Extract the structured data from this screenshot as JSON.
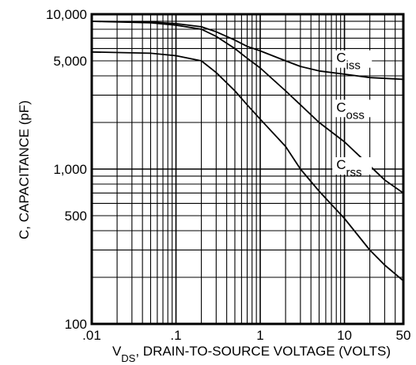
{
  "chart_data": {
    "type": "line",
    "title": "",
    "xlabel": {
      "main": "V",
      "sub": "DS",
      "rest": ", DRAIN-TO-SOURCE VOLTAGE (VOLTS)"
    },
    "ylabel": "C, CAPACITANCE (pF)",
    "x_scale": "log",
    "y_scale": "log",
    "xlim": [
      0.01,
      50
    ],
    "ylim": [
      100,
      10000
    ],
    "grid": true,
    "x_ticks": [
      {
        "value": 0.01,
        "label": ".01"
      },
      {
        "value": 0.1,
        "label": ".1"
      },
      {
        "value": 1,
        "label": "1"
      },
      {
        "value": 10,
        "label": "10"
      },
      {
        "value": 50,
        "label": "50"
      }
    ],
    "y_ticks": [
      {
        "value": 100,
        "label": "100"
      },
      {
        "value": 500,
        "label": "500"
      },
      {
        "value": 1000,
        "label": "1,000"
      },
      {
        "value": 5000,
        "label": "5,000"
      },
      {
        "value": 10000,
        "label": "10,000"
      }
    ],
    "series": [
      {
        "name": "Ciss",
        "label_main": "C",
        "label_sub": "iss",
        "label_at": {
          "x": 8,
          "y": 4900
        },
        "x": [
          0.01,
          0.05,
          0.1,
          0.2,
          0.3,
          0.5,
          0.7,
          1,
          2,
          3,
          5,
          10,
          20,
          30,
          50
        ],
        "y": [
          9000,
          8900,
          8700,
          8300,
          7700,
          6800,
          6200,
          5800,
          5000,
          4600,
          4300,
          4100,
          3900,
          3850,
          3800
        ]
      },
      {
        "name": "Coss",
        "label_main": "C",
        "label_sub": "oss",
        "label_at": {
          "x": 8,
          "y": 2350
        },
        "x": [
          0.01,
          0.05,
          0.1,
          0.2,
          0.3,
          0.5,
          0.7,
          1,
          2,
          3,
          5,
          10,
          20,
          30,
          50
        ],
        "y": [
          9000,
          8800,
          8500,
          8000,
          7200,
          6000,
          5200,
          4500,
          3200,
          2600,
          2000,
          1500,
          1050,
          850,
          700
        ]
      },
      {
        "name": "Crss",
        "label_main": "C",
        "label_sub": "rss",
        "label_at": {
          "x": 8,
          "y": 1000
        },
        "x": [
          0.01,
          0.05,
          0.1,
          0.2,
          0.3,
          0.5,
          0.7,
          1,
          2,
          3,
          5,
          10,
          20,
          30,
          50
        ],
        "y": [
          5700,
          5600,
          5400,
          5000,
          4200,
          3200,
          2600,
          2100,
          1400,
          1000,
          720,
          480,
          300,
          240,
          190
        ]
      }
    ]
  }
}
